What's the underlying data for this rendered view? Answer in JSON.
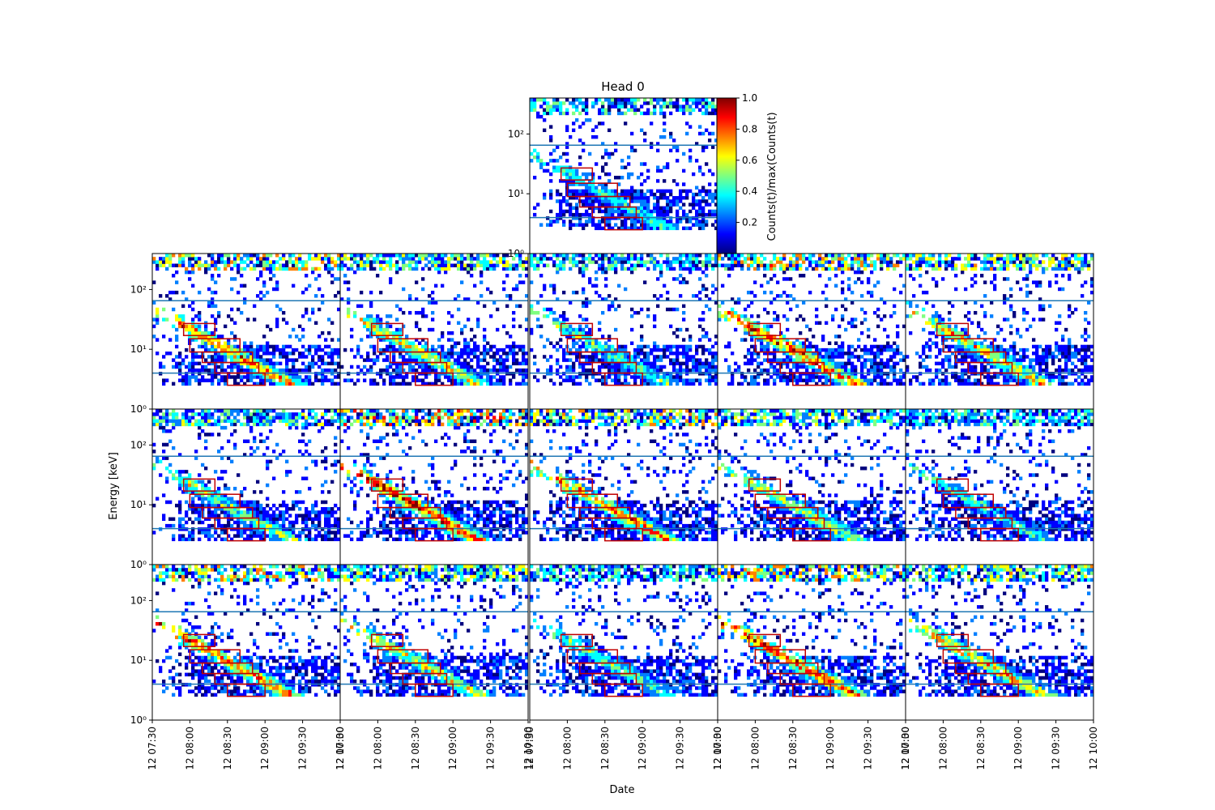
{
  "figure": {
    "title": "Head 0",
    "xlabel": "Date",
    "ylabel": "Energy [keV]",
    "colorbar_label": "Counts(t)/max(Counts(t)",
    "colorbar_ticks": [
      "0.2",
      "0.4",
      "0.6",
      "0.8",
      "1.0"
    ],
    "colormap": [
      "#00007f",
      "#0000ff",
      "#007fff",
      "#00ffff",
      "#7fff7f",
      "#ffff00",
      "#ff7f00",
      "#ff0000",
      "#7f0000"
    ],
    "frame_color": "#000000",
    "box_color": "#c00000",
    "line_color": "#1f77b4"
  },
  "chart_data": {
    "type": "heatmap",
    "grid": false,
    "panels_layout": "1 panel on top, then 3 rows x 5 columns",
    "y_scale": "log",
    "ylim": [
      1,
      400
    ],
    "y_ticks": [
      1,
      10,
      100
    ],
    "y_tick_labels": [
      "10⁰",
      "10¹",
      "10²"
    ],
    "xlim": [
      "12 07:30",
      "12 10:00"
    ],
    "x_tick_labels": [
      "12 07:30",
      "12 08:00",
      "12 08:30",
      "12 09:00",
      "12 09:30",
      "12 10:00"
    ],
    "x_tick_minutes_after_0730": [
      0,
      30,
      60,
      90,
      120,
      150
    ],
    "reference_lines_energy_keV": [
      4,
      65
    ],
    "band_boxes": [
      {
        "t0": "12 07:55",
        "t1": "12 08:20",
        "e_low": 17,
        "e_high": 27
      },
      {
        "t0": "12 08:00",
        "t1": "12 08:40",
        "e_low": 9,
        "e_high": 15
      },
      {
        "t0": "12 08:10",
        "t1": "12 08:50",
        "e_low": 6,
        "e_high": 9
      },
      {
        "t0": "12 08:20",
        "t1": "12 08:55",
        "e_low": 4,
        "e_high": 6
      },
      {
        "t0": "12 08:30",
        "t1": "12 09:00",
        "e_low": 2.5,
        "e_high": 4
      }
    ],
    "intensity_scale": {
      "min": 0,
      "max": 1.0
    }
  }
}
